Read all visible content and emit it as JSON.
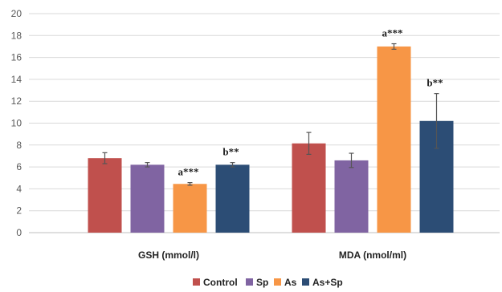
{
  "chart_data": {
    "type": "bar",
    "title": "",
    "xlabel": "",
    "ylabel": "",
    "ylim": [
      0,
      20
    ],
    "yticks": [
      0,
      2,
      4,
      6,
      8,
      10,
      12,
      14,
      16,
      18,
      20
    ],
    "grid": true,
    "legend_position": "bottom",
    "categories": [
      "GSH (mmol/l)",
      "MDA (nmol/ml)"
    ],
    "series": [
      {
        "name": "Control",
        "color": "#c0504d",
        "values": [
          6.8,
          8.15
        ],
        "errors": [
          0.5,
          1.0
        ],
        "labels": [
          "",
          ""
        ]
      },
      {
        "name": "Sp",
        "color": "#8064a2",
        "values": [
          6.2,
          6.6
        ],
        "errors": [
          0.2,
          0.65
        ],
        "labels": [
          "",
          ""
        ]
      },
      {
        "name": "As",
        "color": "#f79646",
        "values": [
          4.45,
          17.0
        ],
        "errors": [
          0.12,
          0.25
        ],
        "labels": [
          "a***",
          "a***"
        ]
      },
      {
        "name": "As+Sp",
        "color": "#2c4d75",
        "values": [
          6.2,
          10.2
        ],
        "errors": [
          0.2,
          2.5
        ],
        "labels": [
          "b**",
          "b**"
        ]
      }
    ]
  }
}
